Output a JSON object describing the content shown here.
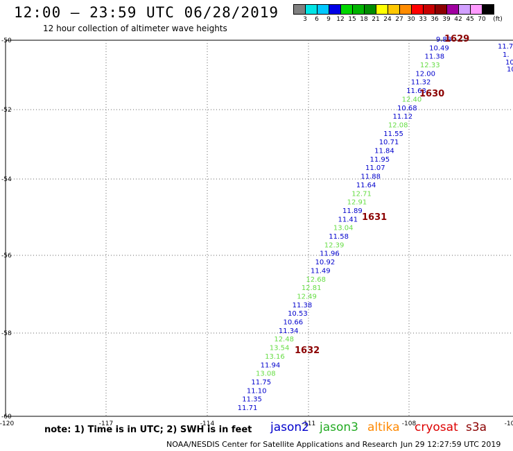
{
  "header": {
    "title": "12:00 — 23:59 UTC 06/28/2019",
    "subtitle": "12 hour collection of altimeter wave heights"
  },
  "colorbar": {
    "colors": [
      "#808080",
      "#00e5e5",
      "#00c8ff",
      "#0000e6",
      "#00d700",
      "#00b400",
      "#008c00",
      "#ffff00",
      "#ffc800",
      "#ff8c00",
      "#ff0000",
      "#c80000",
      "#8c0000",
      "#a000a0",
      "#d2a0ff",
      "#ff9bff",
      "#000000"
    ],
    "labels": [
      "3",
      "6",
      "9",
      "12",
      "15",
      "18",
      "21",
      "24",
      "27",
      "30",
      "33",
      "36",
      "39",
      "42",
      "45",
      "70",
      "(ft)"
    ]
  },
  "axes": {
    "lat_labels": [
      "-50",
      "-52",
      "-54",
      "-56",
      "-58",
      "-60"
    ],
    "lon_labels": [
      "-120",
      "-117",
      "-114",
      "-111",
      "-108",
      "-10"
    ]
  },
  "tracks": [
    {
      "label": "9.88",
      "color": "#0000cc"
    },
    {
      "label": "10.49",
      "color": "#0000cc"
    },
    {
      "label": "11.38",
      "color": "#0000cc"
    },
    {
      "label": "12.33",
      "color": "#66dd44"
    },
    {
      "label": "12.00",
      "color": "#0000cc"
    },
    {
      "label": "11.32",
      "color": "#0000cc"
    },
    {
      "label": "11.63",
      "color": "#0000cc"
    },
    {
      "label": "12.40",
      "color": "#66dd44"
    },
    {
      "label": "10.68",
      "color": "#0000cc"
    },
    {
      "label": "11.12",
      "color": "#0000cc"
    },
    {
      "label": "12.08",
      "color": "#66dd44"
    },
    {
      "label": "11.55",
      "color": "#0000cc"
    },
    {
      "label": "10.71",
      "color": "#0000cc"
    },
    {
      "label": "11.84",
      "color": "#0000cc"
    },
    {
      "label": "11.95",
      "color": "#0000cc"
    },
    {
      "label": "11.07",
      "color": "#0000cc"
    },
    {
      "label": "11.88",
      "color": "#0000cc"
    },
    {
      "label": "11.64",
      "color": "#0000cc"
    },
    {
      "label": "12.71",
      "color": "#66dd44"
    },
    {
      "label": "12.91",
      "color": "#66dd44"
    },
    {
      "label": "11.89",
      "color": "#0000cc"
    },
    {
      "label": "11.41",
      "color": "#0000cc"
    },
    {
      "label": "13.04",
      "color": "#66dd44"
    },
    {
      "label": "11.58",
      "color": "#0000cc"
    },
    {
      "label": "12.39",
      "color": "#66dd44"
    },
    {
      "label": "11.96",
      "color": "#0000cc"
    },
    {
      "label": "10.92",
      "color": "#0000cc"
    },
    {
      "label": "11.49",
      "color": "#0000cc"
    },
    {
      "label": "12.68",
      "color": "#66dd44"
    },
    {
      "label": "12.81",
      "color": "#66dd44"
    },
    {
      "label": "12.49",
      "color": "#66dd44"
    },
    {
      "label": "11.38",
      "color": "#0000cc"
    },
    {
      "label": "10.53",
      "color": "#0000cc"
    },
    {
      "label": "10.66",
      "color": "#0000cc"
    },
    {
      "label": "11.34",
      "color": "#0000cc"
    },
    {
      "label": "12.48",
      "color": "#66dd44"
    },
    {
      "label": "13.54",
      "color": "#66dd44"
    },
    {
      "label": "13.16",
      "color": "#66dd44"
    },
    {
      "label": "11.94",
      "color": "#0000cc"
    },
    {
      "label": "13.08",
      "color": "#66dd44"
    },
    {
      "label": "11.75",
      "color": "#0000cc"
    },
    {
      "label": "11.10",
      "color": "#0000cc"
    },
    {
      "label": "11.35",
      "color": "#0000cc"
    },
    {
      "label": "11.71",
      "color": "#0000cc"
    }
  ],
  "right_track": [
    {
      "label": "11.7",
      "color": "#0000cc"
    },
    {
      "label": "1.",
      "color": "#0000cc"
    },
    {
      "label": "10",
      "color": "#0000cc"
    },
    {
      "label": "10",
      "color": "#0000cc"
    }
  ],
  "time_labels": [
    "1629",
    "1630",
    "1631",
    "1632"
  ],
  "time_label_color": "#8b0000",
  "footer": {
    "note": "note: 1) Time is in UTC; 2) SWH is in feet",
    "legend": [
      {
        "name": "jason2",
        "color": "#0000cc"
      },
      {
        "name": "jason3",
        "color": "#22aa22"
      },
      {
        "name": "altika",
        "color": "#ff8800"
      },
      {
        "name": "cryosat",
        "color": "#dd0000"
      },
      {
        "name": "s3a",
        "color": "#8b0000"
      }
    ],
    "credit": "NOAA/NESDIS Center for Satellite Applications and Research",
    "timestamp": "Jun 29 12:27:59 UTC 2019"
  }
}
